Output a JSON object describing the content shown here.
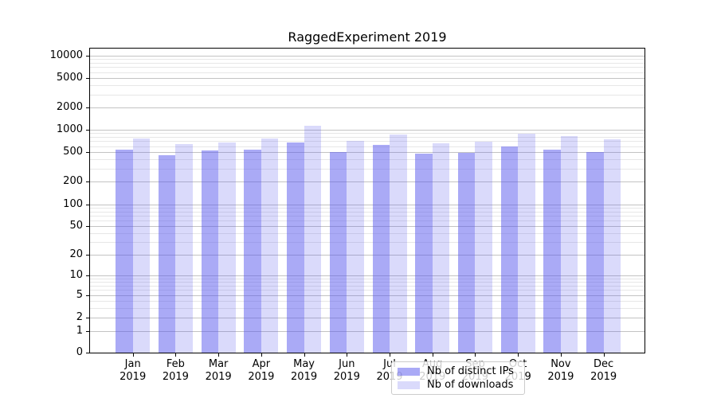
{
  "title": "RaggedExperiment 2019",
  "colors": {
    "ips": "rgba(85,85,238,0.5)",
    "downloads": "rgba(85,85,238,0.22)",
    "grid_major": "#c3c3c3",
    "grid_minor": "#e7e7e7",
    "axis": "#000000"
  },
  "legend": {
    "items": [
      {
        "label": "Nb of distinct IPs",
        "color_key": "ips"
      },
      {
        "label": "Nb of downloads",
        "color_key": "downloads"
      }
    ]
  },
  "chart_data": {
    "type": "bar",
    "title": "RaggedExperiment 2019",
    "categories": [
      "Jan",
      "Feb",
      "Mar",
      "Apr",
      "May",
      "Jun",
      "Jul",
      "Aug",
      "Sep",
      "Oct",
      "Nov",
      "Dec"
    ],
    "x_tick_year": "2019",
    "series": [
      {
        "name": "Nb of distinct IPs",
        "color_key": "ips",
        "values": [
          545,
          455,
          525,
          535,
          675,
          500,
          620,
          480,
          485,
          590,
          545,
          505
        ]
      },
      {
        "name": "Nb of downloads",
        "color_key": "downloads",
        "values": [
          765,
          635,
          675,
          765,
          1135,
          710,
          860,
          655,
          695,
          880,
          830,
          740
        ]
      }
    ],
    "yscale": "symlog",
    "yticks": [
      0,
      1,
      2,
      5,
      10,
      20,
      50,
      100,
      200,
      500,
      1000,
      2000,
      5000,
      10000
    ],
    "ylim": [
      0,
      12500
    ],
    "grid": "both",
    "legend_position": "lower-center"
  }
}
